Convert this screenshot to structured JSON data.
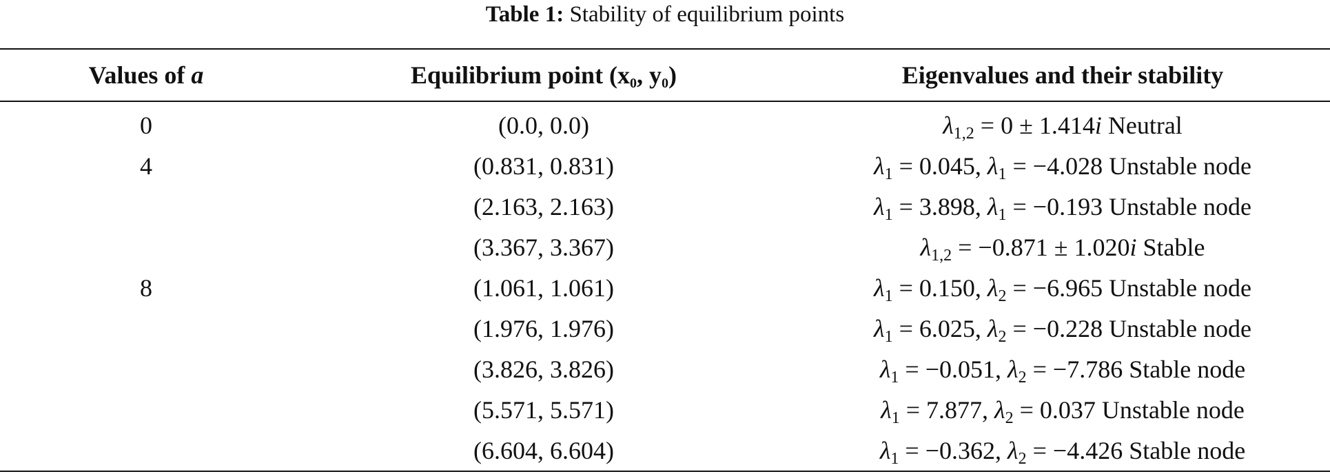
{
  "caption": {
    "label": "Table 1:",
    "text": " Stability of equilibrium points"
  },
  "headers": {
    "col1_text": "Values of ",
    "col1_var": "a",
    "col2_text": "Equilibrium point (x",
    "col2_sub1": "0",
    "col2_mid": ", y",
    "col2_sub2": "0",
    "col2_end": ")",
    "col3_text": "Eigenvalues and their stability"
  },
  "rows": [
    {
      "a": "0",
      "point": "(0.0, 0.0)",
      "eig": {
        "sym1": "λ",
        "sub1": "1,2",
        "mid": " = 0 ± 1.414",
        "imag": "i",
        "stability": " Neutral"
      }
    },
    {
      "a": "4",
      "point": "(0.831, 0.831)",
      "eig": {
        "sym1": "λ",
        "sub1": "1",
        "v1": " = 0.045, ",
        "sym2": "λ",
        "sub2": "1",
        "v2": " = −4.028",
        "stability": " Unstable node"
      }
    },
    {
      "a": "",
      "point": "(2.163, 2.163)",
      "eig": {
        "sym1": "λ",
        "sub1": "1",
        "v1": " = 3.898, ",
        "sym2": "λ",
        "sub2": "1",
        "v2": " = −0.193",
        "stability": " Unstable node"
      }
    },
    {
      "a": "",
      "point": "(3.367, 3.367)",
      "eig": {
        "sym1": "λ",
        "sub1": "1,2",
        "mid": " = −0.871 ± 1.020",
        "imag": "i",
        "stability": " Stable"
      }
    },
    {
      "a": "8",
      "point": "(1.061, 1.061)",
      "eig": {
        "sym1": "λ",
        "sub1": "1",
        "v1": " = 0.150, ",
        "sym2": "λ",
        "sub2": "2",
        "v2": " = −6.965",
        "stability": " Unstable node"
      }
    },
    {
      "a": "",
      "point": "(1.976, 1.976)",
      "eig": {
        "sym1": "λ",
        "sub1": "1",
        "v1": " = 6.025, ",
        "sym2": "λ",
        "sub2": "2",
        "v2": " = −0.228",
        "stability": " Unstable node"
      }
    },
    {
      "a": "",
      "point": "(3.826, 3.826)",
      "eig": {
        "sym1": "λ",
        "sub1": "1",
        "v1": " = −0.051, ",
        "sym2": "λ",
        "sub2": "2",
        "v2": " = −7.786",
        "stability": " Stable node"
      }
    },
    {
      "a": "",
      "point": "(5.571, 5.571)",
      "eig": {
        "sym1": "λ",
        "sub1": "1",
        "v1": " = 7.877, ",
        "sym2": "λ",
        "sub2": "2",
        "v2": " = 0.037",
        "stability": " Unstable node"
      }
    },
    {
      "a": "",
      "point": "(6.604, 6.604)",
      "eig": {
        "sym1": "λ",
        "sub1": "1",
        "v1": " = −0.362, ",
        "sym2": "λ",
        "sub2": "2",
        "v2": " = −4.426",
        "stability": " Stable node"
      }
    }
  ]
}
